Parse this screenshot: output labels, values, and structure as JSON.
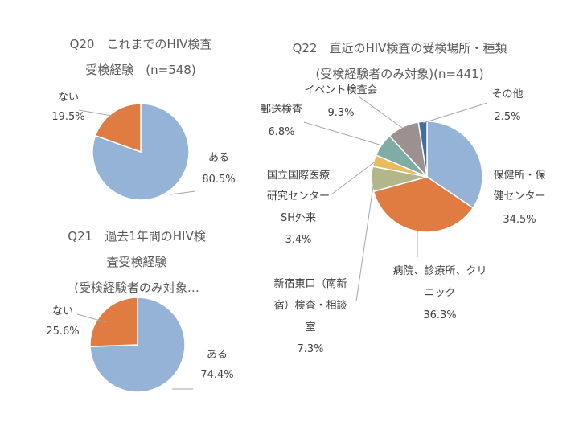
{
  "chart_data": [
    {
      "type": "pie",
      "title": [
        "Q20　これまでのHIV検査",
        "受検経験　(n=548)"
      ],
      "categories": [
        "ある",
        "ない"
      ],
      "values": [
        80.5,
        19.5
      ],
      "value_labels": [
        "80.5%",
        "19.5%"
      ],
      "colors": [
        "#95b3d7",
        "#e07c41"
      ]
    },
    {
      "type": "pie",
      "title": [
        "Q21　過去1年間のHIV検",
        "査受検経験",
        "(受検経験者のみ対象…"
      ],
      "categories": [
        "ある",
        "ない"
      ],
      "values": [
        74.4,
        25.6
      ],
      "value_labels": [
        "74.4%",
        "25.6%"
      ],
      "colors": [
        "#95b3d7",
        "#e07c41"
      ]
    },
    {
      "type": "pie",
      "title": [
        "Q22　直近のHIV検査の受検場所・種類",
        "(受検経験者のみ対象)(n=441)"
      ],
      "categories": [
        [
          "保健所・保",
          "健センター"
        ],
        [
          "病院、診療所、クリ",
          "ニック"
        ],
        [
          "新宿東口（南新",
          "宿）検査・相談",
          "室"
        ],
        [
          "国立国際医療",
          "研究センター",
          "SH外来"
        ],
        [
          "郵送検査"
        ],
        [
          "イベント検査会"
        ],
        [
          "その他"
        ]
      ],
      "values": [
        34.5,
        36.3,
        7.3,
        3.4,
        6.8,
        9.3,
        2.5
      ],
      "value_labels": [
        "34.5%",
        "36.3%",
        "7.3%",
        "3.4%",
        "6.8%",
        "9.3%",
        "2.5%"
      ],
      "colors": [
        "#95b3d7",
        "#e07c41",
        "#b3b58a",
        "#e9bb5c",
        "#7fada6",
        "#9c9090",
        "#3f6f9a"
      ]
    }
  ]
}
